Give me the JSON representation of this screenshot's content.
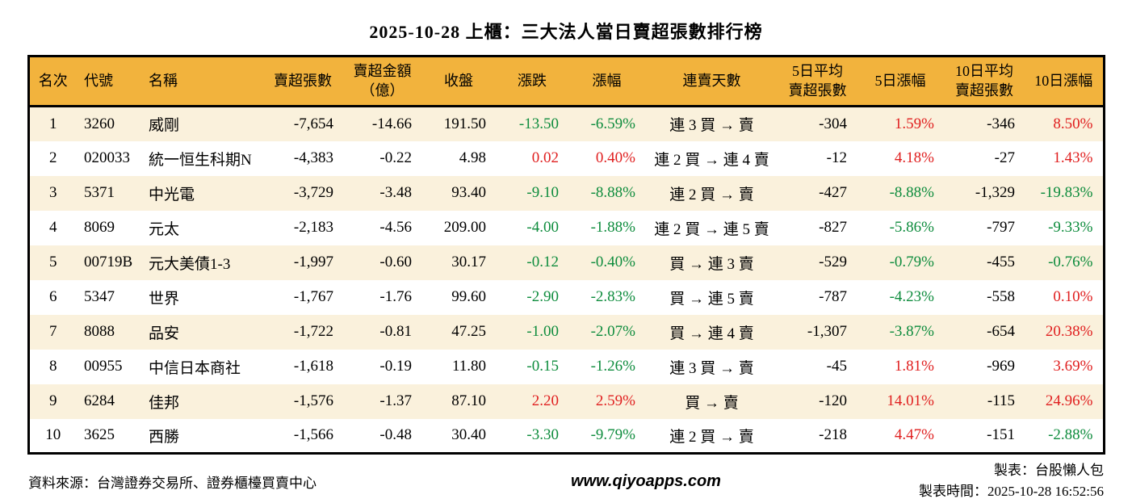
{
  "title": "2025-10-28 上櫃：三大法人當日賣超張數排行榜",
  "colors": {
    "header_bg": "#F2B33D",
    "row_alt_bg": "#FAF1DC",
    "up_red": "#E01F1F",
    "down_green": "#0E8C3D"
  },
  "table": {
    "headers": [
      {
        "lines": [
          "名次"
        ]
      },
      {
        "lines": [
          "代號"
        ]
      },
      {
        "lines": [
          "名稱"
        ]
      },
      {
        "lines": [
          "賣超張數"
        ]
      },
      {
        "lines": [
          "賣超金額",
          "（億）"
        ]
      },
      {
        "lines": [
          "收盤"
        ]
      },
      {
        "lines": [
          "漲跌"
        ]
      },
      {
        "lines": [
          "漲幅"
        ]
      },
      {
        "lines": [
          "連賣天數"
        ]
      },
      {
        "lines": [
          "5日平均",
          "賣超張數"
        ]
      },
      {
        "lines": [
          "5日漲幅"
        ]
      },
      {
        "lines": [
          "10日平均",
          "賣超張數"
        ]
      },
      {
        "lines": [
          "10日漲幅"
        ]
      }
    ],
    "rows": [
      {
        "rank": "1",
        "code": "3260",
        "name": "威剛",
        "sell_volume": "-7,654",
        "sell_amount": "-14.66",
        "close": "191.50",
        "change": "-13.50",
        "change_trend": "down",
        "change_pct": "-6.59%",
        "change_pct_trend": "down",
        "streak": "連 3 買 → 賣",
        "avg5": "-304",
        "pct5": "1.59%",
        "pct5_trend": "up",
        "avg10": "-346",
        "pct10": "8.50%",
        "pct10_trend": "up"
      },
      {
        "rank": "2",
        "code": "020033",
        "name": "統一恒生科期N",
        "sell_volume": "-4,383",
        "sell_amount": "-0.22",
        "close": "4.98",
        "change": "0.02",
        "change_trend": "up",
        "change_pct": "0.40%",
        "change_pct_trend": "up",
        "streak": "連 2 買 → 連 4 賣",
        "avg5": "-12",
        "pct5": "4.18%",
        "pct5_trend": "up",
        "avg10": "-27",
        "pct10": "1.43%",
        "pct10_trend": "up"
      },
      {
        "rank": "3",
        "code": "5371",
        "name": "中光電",
        "sell_volume": "-3,729",
        "sell_amount": "-3.48",
        "close": "93.40",
        "change": "-9.10",
        "change_trend": "down",
        "change_pct": "-8.88%",
        "change_pct_trend": "down",
        "streak": "連 2 買 → 賣",
        "avg5": "-427",
        "pct5": "-8.88%",
        "pct5_trend": "down",
        "avg10": "-1,329",
        "pct10": "-19.83%",
        "pct10_trend": "down"
      },
      {
        "rank": "4",
        "code": "8069",
        "name": "元太",
        "sell_volume": "-2,183",
        "sell_amount": "-4.56",
        "close": "209.00",
        "change": "-4.00",
        "change_trend": "down",
        "change_pct": "-1.88%",
        "change_pct_trend": "down",
        "streak": "連 2 買 → 連 5 賣",
        "avg5": "-827",
        "pct5": "-5.86%",
        "pct5_trend": "down",
        "avg10": "-797",
        "pct10": "-9.33%",
        "pct10_trend": "down"
      },
      {
        "rank": "5",
        "code": "00719B",
        "name": "元大美債1-3",
        "sell_volume": "-1,997",
        "sell_amount": "-0.60",
        "close": "30.17",
        "change": "-0.12",
        "change_trend": "down",
        "change_pct": "-0.40%",
        "change_pct_trend": "down",
        "streak": "買 → 連 3 賣",
        "avg5": "-529",
        "pct5": "-0.79%",
        "pct5_trend": "down",
        "avg10": "-455",
        "pct10": "-0.76%",
        "pct10_trend": "down"
      },
      {
        "rank": "6",
        "code": "5347",
        "name": "世界",
        "sell_volume": "-1,767",
        "sell_amount": "-1.76",
        "close": "99.60",
        "change": "-2.90",
        "change_trend": "down",
        "change_pct": "-2.83%",
        "change_pct_trend": "down",
        "streak": "買 → 連 5 賣",
        "avg5": "-787",
        "pct5": "-4.23%",
        "pct5_trend": "down",
        "avg10": "-558",
        "pct10": "0.10%",
        "pct10_trend": "up"
      },
      {
        "rank": "7",
        "code": "8088",
        "name": "品安",
        "sell_volume": "-1,722",
        "sell_amount": "-0.81",
        "close": "47.25",
        "change": "-1.00",
        "change_trend": "down",
        "change_pct": "-2.07%",
        "change_pct_trend": "down",
        "streak": "買 → 連 4 賣",
        "avg5": "-1,307",
        "pct5": "-3.87%",
        "pct5_trend": "down",
        "avg10": "-654",
        "pct10": "20.38%",
        "pct10_trend": "up"
      },
      {
        "rank": "8",
        "code": "00955",
        "name": "中信日本商社",
        "sell_volume": "-1,618",
        "sell_amount": "-0.19",
        "close": "11.80",
        "change": "-0.15",
        "change_trend": "down",
        "change_pct": "-1.26%",
        "change_pct_trend": "down",
        "streak": "連 3 買 → 賣",
        "avg5": "-45",
        "pct5": "1.81%",
        "pct5_trend": "up",
        "avg10": "-969",
        "pct10": "3.69%",
        "pct10_trend": "up"
      },
      {
        "rank": "9",
        "code": "6284",
        "name": "佳邦",
        "sell_volume": "-1,576",
        "sell_amount": "-1.37",
        "close": "87.10",
        "change": "2.20",
        "change_trend": "up",
        "change_pct": "2.59%",
        "change_pct_trend": "up",
        "streak": "買 → 賣",
        "avg5": "-120",
        "pct5": "14.01%",
        "pct5_trend": "up",
        "avg10": "-115",
        "pct10": "24.96%",
        "pct10_trend": "up"
      },
      {
        "rank": "10",
        "code": "3625",
        "name": "西勝",
        "sell_volume": "-1,566",
        "sell_amount": "-0.48",
        "close": "30.40",
        "change": "-3.30",
        "change_trend": "down",
        "change_pct": "-9.79%",
        "change_pct_trend": "down",
        "streak": "連 2 買 → 賣",
        "avg5": "-218",
        "pct5": "4.47%",
        "pct5_trend": "up",
        "avg10": "-151",
        "pct10": "-2.88%",
        "pct10_trend": "down"
      }
    ]
  },
  "footer": {
    "source": "資料來源：台灣證券交易所、證券櫃檯買賣中心",
    "website": "www.qiyoapps.com",
    "maker": "製表：台股懶人包",
    "made_at": "製表時間：2025-10-28 16:52:56"
  }
}
